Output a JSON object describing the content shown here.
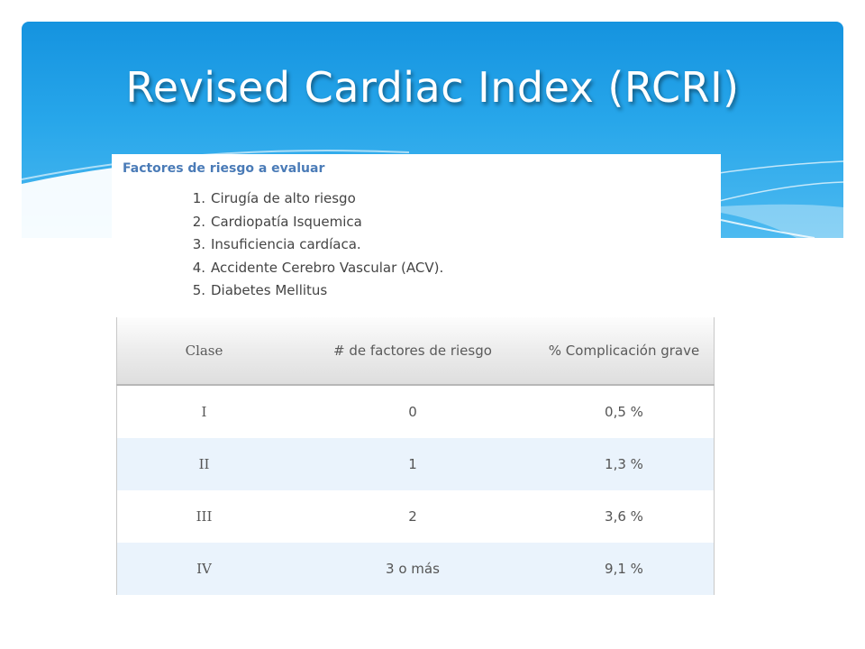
{
  "slide": {
    "title": "Revised Cardiac Index (RCRI)"
  },
  "factors": {
    "heading": "Factores de riesgo a evaluar",
    "items": [
      {
        "number": "1.",
        "text": "Cirugía de alto riesgo"
      },
      {
        "number": "2.",
        "text": "Cardiopatía Isquemica"
      },
      {
        "number": "3.",
        "text": "Insuficiencia cardíaca."
      },
      {
        "number": "4.",
        "text": "Accidente Cerebro Vascular (ACV)."
      },
      {
        "number": "5.",
        "text": "Diabetes Mellitus"
      }
    ]
  },
  "table": {
    "headers": [
      "Clase",
      "# de factores de riesgo",
      "% Complicación grave"
    ],
    "rows": [
      {
        "clase": "I",
        "factores": "0",
        "complicacion": "0,5 %"
      },
      {
        "clase": "II",
        "factores": "1",
        "complicacion": "1,3 %"
      },
      {
        "clase": "III",
        "factores": "2",
        "complicacion": "3,6 %"
      },
      {
        "clase": "IV",
        "factores": "3 o más",
        "complicacion": "9,1 %"
      }
    ]
  },
  "colors": {
    "banner_top": "#1593df",
    "banner_bottom": "#4dbaf0",
    "heading_blue": "#4a7bb7",
    "stripe_row": "#eaf3fc"
  }
}
